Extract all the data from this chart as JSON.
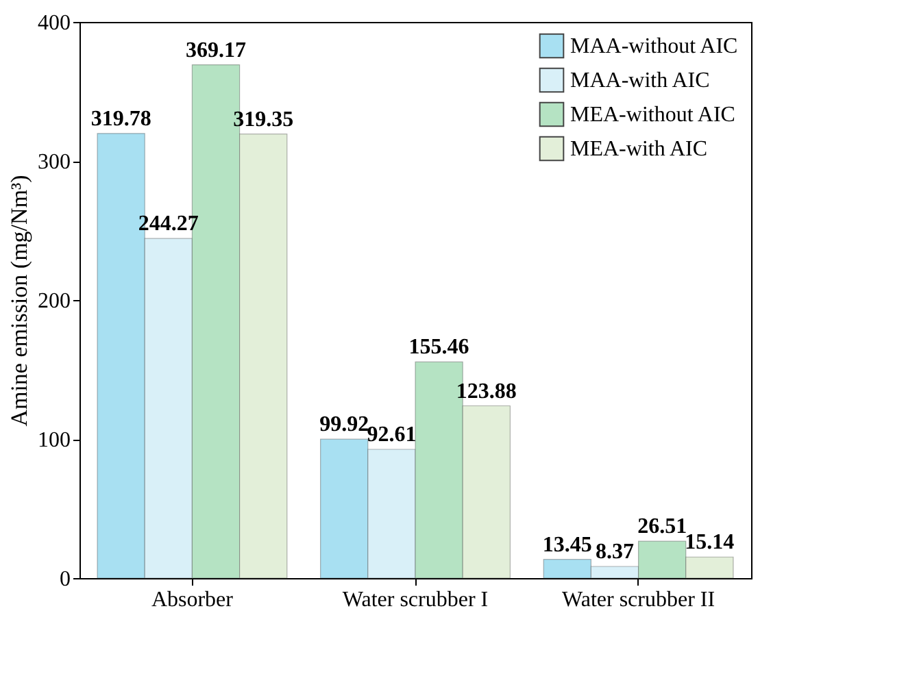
{
  "chart_data": {
    "type": "bar",
    "ylabel": "Amine emission (mg/Nm³)",
    "categories": [
      "Absorber",
      "Water scrubber I",
      "Water scrubber II"
    ],
    "series": [
      {
        "name": "MAA-without AIC",
        "color": "#a8e0f2",
        "values": [
          319.78,
          99.92,
          13.45
        ]
      },
      {
        "name": "MAA-with AIC",
        "color": "#d9f0f8",
        "values": [
          244.27,
          92.61,
          8.37
        ]
      },
      {
        "name": "MEA-without AIC",
        "color": "#b5e3c3",
        "values": [
          369.17,
          155.46,
          26.51
        ]
      },
      {
        "name": "MEA-with AIC",
        "color": "#e3efd9",
        "values": [
          319.35,
          123.88,
          15.14
        ]
      }
    ],
    "ylim": [
      0,
      400
    ],
    "yticks": [
      0,
      100,
      200,
      300,
      400
    ],
    "data_labels": true,
    "legend": "top right",
    "grid": false
  }
}
